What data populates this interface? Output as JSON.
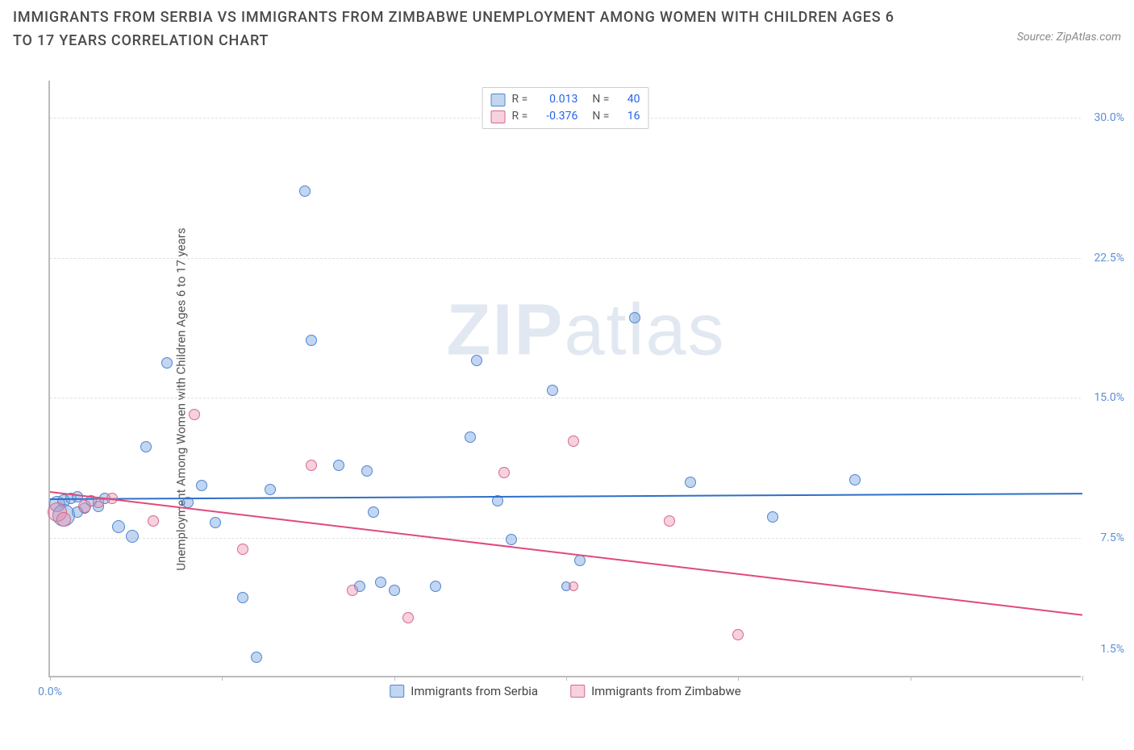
{
  "title": "IMMIGRANTS FROM SERBIA VS IMMIGRANTS FROM ZIMBABWE UNEMPLOYMENT AMONG WOMEN WITH CHILDREN AGES 6 TO 17 YEARS CORRELATION CHART",
  "source": "Source: ZipAtlas.com",
  "ylabel": "Unemployment Among Women with Children Ages 6 to 17 years",
  "watermark_bold": "ZIP",
  "watermark_rest": "atlas",
  "chart": {
    "type": "scatter",
    "xlim": [
      0.0,
      1.5
    ],
    "ylim": [
      0.0,
      32.0
    ],
    "right_y_ticks": [
      {
        "v": 1.5,
        "label": "1.5%"
      },
      {
        "v": 7.5,
        "label": "7.5%"
      },
      {
        "v": 15.0,
        "label": "15.0%"
      },
      {
        "v": 22.5,
        "label": "22.5%"
      },
      {
        "v": 30.0,
        "label": "30.0%"
      }
    ],
    "gridlines_y": [
      7.5,
      15.0,
      22.5,
      30.0
    ],
    "x_ticks": [
      0.0,
      0.25,
      0.5,
      0.75,
      1.0,
      1.25,
      1.5
    ],
    "x_tick_labels": [
      {
        "v": 0.0,
        "label": "0.0%"
      }
    ],
    "background_color": "#ffffff",
    "grid_color": "#e2e2e2",
    "axis_color": "#bbbbbb",
    "tick_label_color": "#5b8fd6"
  },
  "series": [
    {
      "name": "Immigrants from Serbia",
      "fill": "rgba(120,165,225,0.45)",
      "stroke": "#4f86d1",
      "line_color": "#2f6fc7",
      "R": "0.013",
      "N": "40",
      "trend": {
        "y_at_xmin": 9.6,
        "y_at_xmax": 9.9
      },
      "points": [
        {
          "x": 0.01,
          "y": 9.2,
          "r": 10
        },
        {
          "x": 0.02,
          "y": 9.4,
          "r": 8
        },
        {
          "x": 0.02,
          "y": 8.6,
          "r": 14
        },
        {
          "x": 0.03,
          "y": 9.5,
          "r": 7
        },
        {
          "x": 0.04,
          "y": 9.6,
          "r": 7
        },
        {
          "x": 0.05,
          "y": 9.0,
          "r": 7
        },
        {
          "x": 0.06,
          "y": 9.4,
          "r": 7
        },
        {
          "x": 0.08,
          "y": 9.5,
          "r": 7
        },
        {
          "x": 0.1,
          "y": 8.0,
          "r": 8
        },
        {
          "x": 0.12,
          "y": 7.5,
          "r": 8
        },
        {
          "x": 0.14,
          "y": 12.3,
          "r": 7
        },
        {
          "x": 0.17,
          "y": 16.8,
          "r": 7
        },
        {
          "x": 0.22,
          "y": 10.2,
          "r": 7
        },
        {
          "x": 0.24,
          "y": 8.2,
          "r": 7
        },
        {
          "x": 0.28,
          "y": 4.2,
          "r": 7
        },
        {
          "x": 0.3,
          "y": 1.0,
          "r": 7
        },
        {
          "x": 0.32,
          "y": 10.0,
          "r": 7
        },
        {
          "x": 0.37,
          "y": 26.0,
          "r": 7
        },
        {
          "x": 0.38,
          "y": 18.0,
          "r": 7
        },
        {
          "x": 0.42,
          "y": 11.3,
          "r": 7
        },
        {
          "x": 0.45,
          "y": 4.8,
          "r": 7
        },
        {
          "x": 0.46,
          "y": 11.0,
          "r": 7
        },
        {
          "x": 0.47,
          "y": 8.8,
          "r": 7
        },
        {
          "x": 0.48,
          "y": 5.0,
          "r": 7
        },
        {
          "x": 0.5,
          "y": 4.6,
          "r": 7
        },
        {
          "x": 0.56,
          "y": 4.8,
          "r": 7
        },
        {
          "x": 0.61,
          "y": 12.8,
          "r": 7
        },
        {
          "x": 0.62,
          "y": 16.9,
          "r": 7
        },
        {
          "x": 0.65,
          "y": 9.4,
          "r": 7
        },
        {
          "x": 0.67,
          "y": 7.3,
          "r": 7
        },
        {
          "x": 0.73,
          "y": 15.3,
          "r": 7
        },
        {
          "x": 0.75,
          "y": 4.8,
          "r": 6
        },
        {
          "x": 0.77,
          "y": 6.2,
          "r": 7
        },
        {
          "x": 0.85,
          "y": 19.2,
          "r": 7
        },
        {
          "x": 0.93,
          "y": 10.4,
          "r": 7
        },
        {
          "x": 1.05,
          "y": 8.5,
          "r": 7
        },
        {
          "x": 1.17,
          "y": 10.5,
          "r": 7
        },
        {
          "x": 0.04,
          "y": 8.8,
          "r": 7
        },
        {
          "x": 0.07,
          "y": 9.1,
          "r": 7
        },
        {
          "x": 0.2,
          "y": 9.3,
          "r": 7
        }
      ]
    },
    {
      "name": "Immigrants from Zimbabwe",
      "fill": "rgba(235,140,170,0.40)",
      "stroke": "#d46a8f",
      "line_color": "#e04a7a",
      "R": "-0.376",
      "N": "16",
      "trend": {
        "y_at_xmin": 10.0,
        "y_at_xmax": 3.4
      },
      "points": [
        {
          "x": 0.01,
          "y": 8.8,
          "r": 12
        },
        {
          "x": 0.02,
          "y": 8.4,
          "r": 9
        },
        {
          "x": 0.05,
          "y": 9.1,
          "r": 8
        },
        {
          "x": 0.07,
          "y": 9.3,
          "r": 7
        },
        {
          "x": 0.09,
          "y": 9.5,
          "r": 7
        },
        {
          "x": 0.15,
          "y": 8.3,
          "r": 7
        },
        {
          "x": 0.21,
          "y": 14.0,
          "r": 7
        },
        {
          "x": 0.28,
          "y": 6.8,
          "r": 7
        },
        {
          "x": 0.38,
          "y": 11.3,
          "r": 7
        },
        {
          "x": 0.44,
          "y": 4.6,
          "r": 7
        },
        {
          "x": 0.52,
          "y": 3.1,
          "r": 7
        },
        {
          "x": 0.66,
          "y": 10.9,
          "r": 7
        },
        {
          "x": 0.76,
          "y": 12.6,
          "r": 7
        },
        {
          "x": 0.76,
          "y": 4.8,
          "r": 6
        },
        {
          "x": 0.9,
          "y": 8.3,
          "r": 7
        },
        {
          "x": 1.0,
          "y": 2.2,
          "r": 7
        }
      ]
    }
  ],
  "legend_top": {
    "rows": [
      {
        "swatch_fill": "rgba(120,165,225,0.45)",
        "swatch_stroke": "#4f86d1",
        "r_label": "R =",
        "r_val": "0.013",
        "n_label": "N =",
        "n_val": "40"
      },
      {
        "swatch_fill": "rgba(235,140,170,0.40)",
        "swatch_stroke": "#d46a8f",
        "r_label": "R =",
        "r_val": "-0.376",
        "n_label": "N =",
        "n_val": "16"
      }
    ]
  },
  "legend_bottom": [
    {
      "swatch_fill": "rgba(120,165,225,0.45)",
      "swatch_stroke": "#4f86d1",
      "label": "Immigrants from Serbia"
    },
    {
      "swatch_fill": "rgba(235,140,170,0.40)",
      "swatch_stroke": "#d46a8f",
      "label": "Immigrants from Zimbabwe"
    }
  ]
}
